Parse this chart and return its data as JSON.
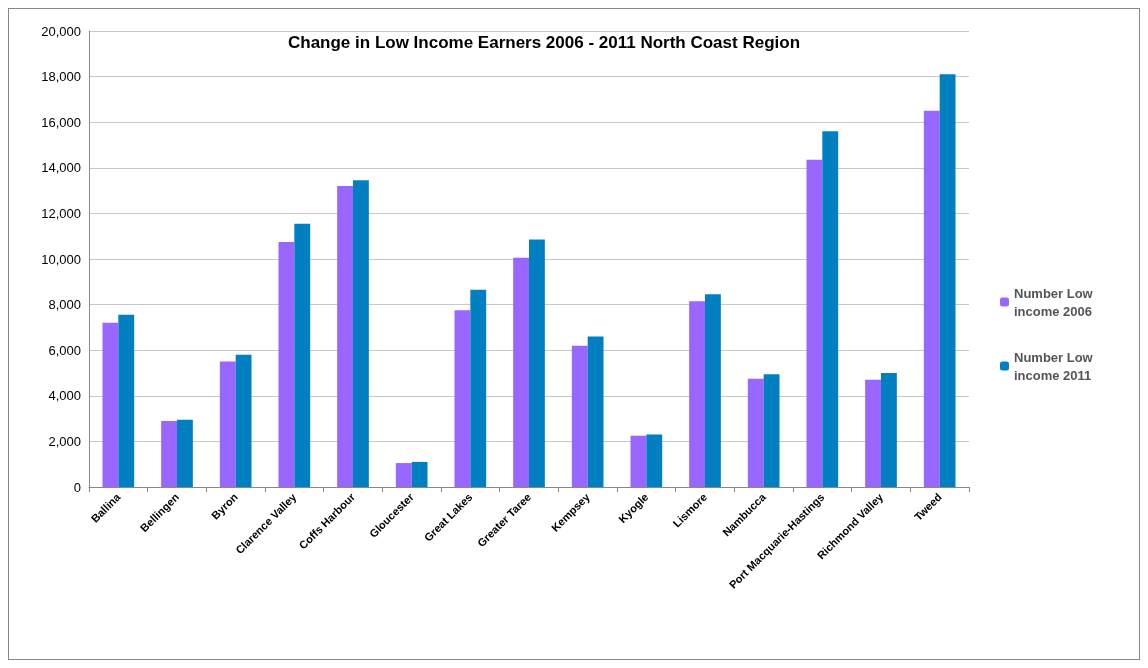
{
  "chart_data": {
    "type": "bar",
    "title": "Change in Low Income Earners 2006 - 2011 North Coast Region",
    "categories": [
      "Ballina",
      "Bellingen",
      "Byron",
      "Clarence Valley",
      "Coffs Harbour",
      "Gloucester",
      "Great Lakes",
      "Greater Taree",
      "Kempsey",
      "Kyogle",
      "Lismore",
      "Nambucca",
      "Port Macquarie-Hastings",
      "Richmond Valley",
      "Tweed"
    ],
    "series": [
      {
        "name": "Number Low income 2006",
        "color": "#9966ff",
        "values": [
          7200,
          2900,
          5500,
          10750,
          13200,
          1050,
          7750,
          10050,
          6200,
          2250,
          8150,
          4750,
          14350,
          4700,
          16500
        ]
      },
      {
        "name": "Number Low income 2011",
        "color": "#0080c0",
        "values": [
          7550,
          2950,
          5800,
          11550,
          13450,
          1100,
          8650,
          10850,
          6600,
          2300,
          8450,
          4950,
          15600,
          5000,
          18100
        ]
      }
    ],
    "ylim": [
      0,
      20000
    ],
    "yticks": [
      0,
      {
        "value": 2000,
        "label": "2,000"
      },
      {
        "value": 4000,
        "label": "4,000"
      },
      {
        "value": 6000,
        "label": "6,000"
      },
      {
        "value": 8000,
        "label": "8,000"
      },
      {
        "value": 10000,
        "label": "10,000"
      },
      {
        "value": 12000,
        "label": "12,000"
      },
      {
        "value": 14000,
        "label": "14,000"
      },
      {
        "value": 16000,
        "label": "16,000"
      },
      {
        "value": 18000,
        "label": "18,000"
      },
      {
        "value": 20000,
        "label": "20,000"
      }
    ],
    "grid": "y",
    "legend": "right"
  }
}
